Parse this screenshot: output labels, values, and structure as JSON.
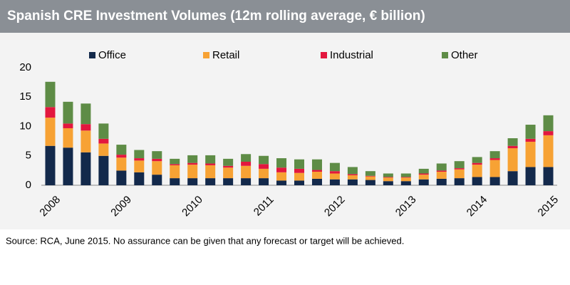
{
  "chart_data": {
    "type": "stacked_bar",
    "title": "Spanish CRE Investment Volumes (12m rolling average, € billion)",
    "source": "Source: RCA, June 2015.  No assurance can be given that any forecast or target will be achieved.",
    "categories": [
      "2008",
      null,
      null,
      null,
      "2009",
      null,
      null,
      null,
      "2010",
      null,
      null,
      null,
      "2011",
      null,
      null,
      null,
      "2012",
      null,
      null,
      null,
      "2013",
      null,
      null,
      null,
      "2014",
      null,
      null,
      null,
      "2015"
    ],
    "series": [
      {
        "name": "Office",
        "color": "#13294b",
        "values": [
          6.7,
          6.4,
          5.6,
          5.0,
          2.5,
          2.2,
          1.8,
          1.2,
          1.2,
          1.2,
          1.2,
          1.2,
          1.2,
          0.8,
          0.8,
          1.1,
          1.0,
          1.0,
          0.9,
          0.7,
          0.7,
          1.0,
          1.1,
          1.2,
          1.4,
          1.4,
          2.4,
          3.1,
          3.1
        ]
      },
      {
        "name": "Retail",
        "color": "#f7a234",
        "values": [
          4.8,
          3.3,
          3.7,
          2.1,
          2.2,
          2.0,
          2.3,
          2.2,
          2.3,
          2.2,
          1.8,
          2.1,
          1.6,
          1.4,
          1.3,
          1.2,
          1.0,
          0.7,
          0.6,
          0.6,
          0.6,
          0.8,
          1.2,
          1.5,
          2.1,
          2.9,
          3.9,
          4.3,
          5.4
        ]
      },
      {
        "name": "Industrial",
        "color": "#e3173e",
        "values": [
          1.8,
          0.8,
          1.1,
          0.8,
          0.5,
          0.4,
          0.4,
          0.2,
          0.3,
          0.3,
          0.3,
          0.7,
          0.8,
          0.8,
          0.7,
          0.3,
          0.4,
          0.2,
          0.1,
          0.1,
          0.1,
          0.2,
          0.2,
          0.2,
          0.3,
          0.3,
          0.4,
          0.5,
          0.7
        ]
      },
      {
        "name": "Other",
        "color": "#5e8c46",
        "values": [
          4.3,
          3.7,
          3.5,
          2.6,
          1.7,
          1.4,
          1.3,
          0.9,
          1.3,
          1.4,
          1.2,
          1.3,
          1.4,
          1.6,
          1.6,
          1.8,
          1.4,
          1.2,
          0.8,
          0.6,
          0.6,
          0.8,
          1.2,
          1.2,
          1.0,
          1.2,
          1.3,
          2.4,
          2.7
        ]
      }
    ],
    "ylim": [
      0,
      20
    ],
    "yticks": [
      0,
      5,
      10,
      15,
      20
    ],
    "grid": false,
    "legend": "top"
  }
}
